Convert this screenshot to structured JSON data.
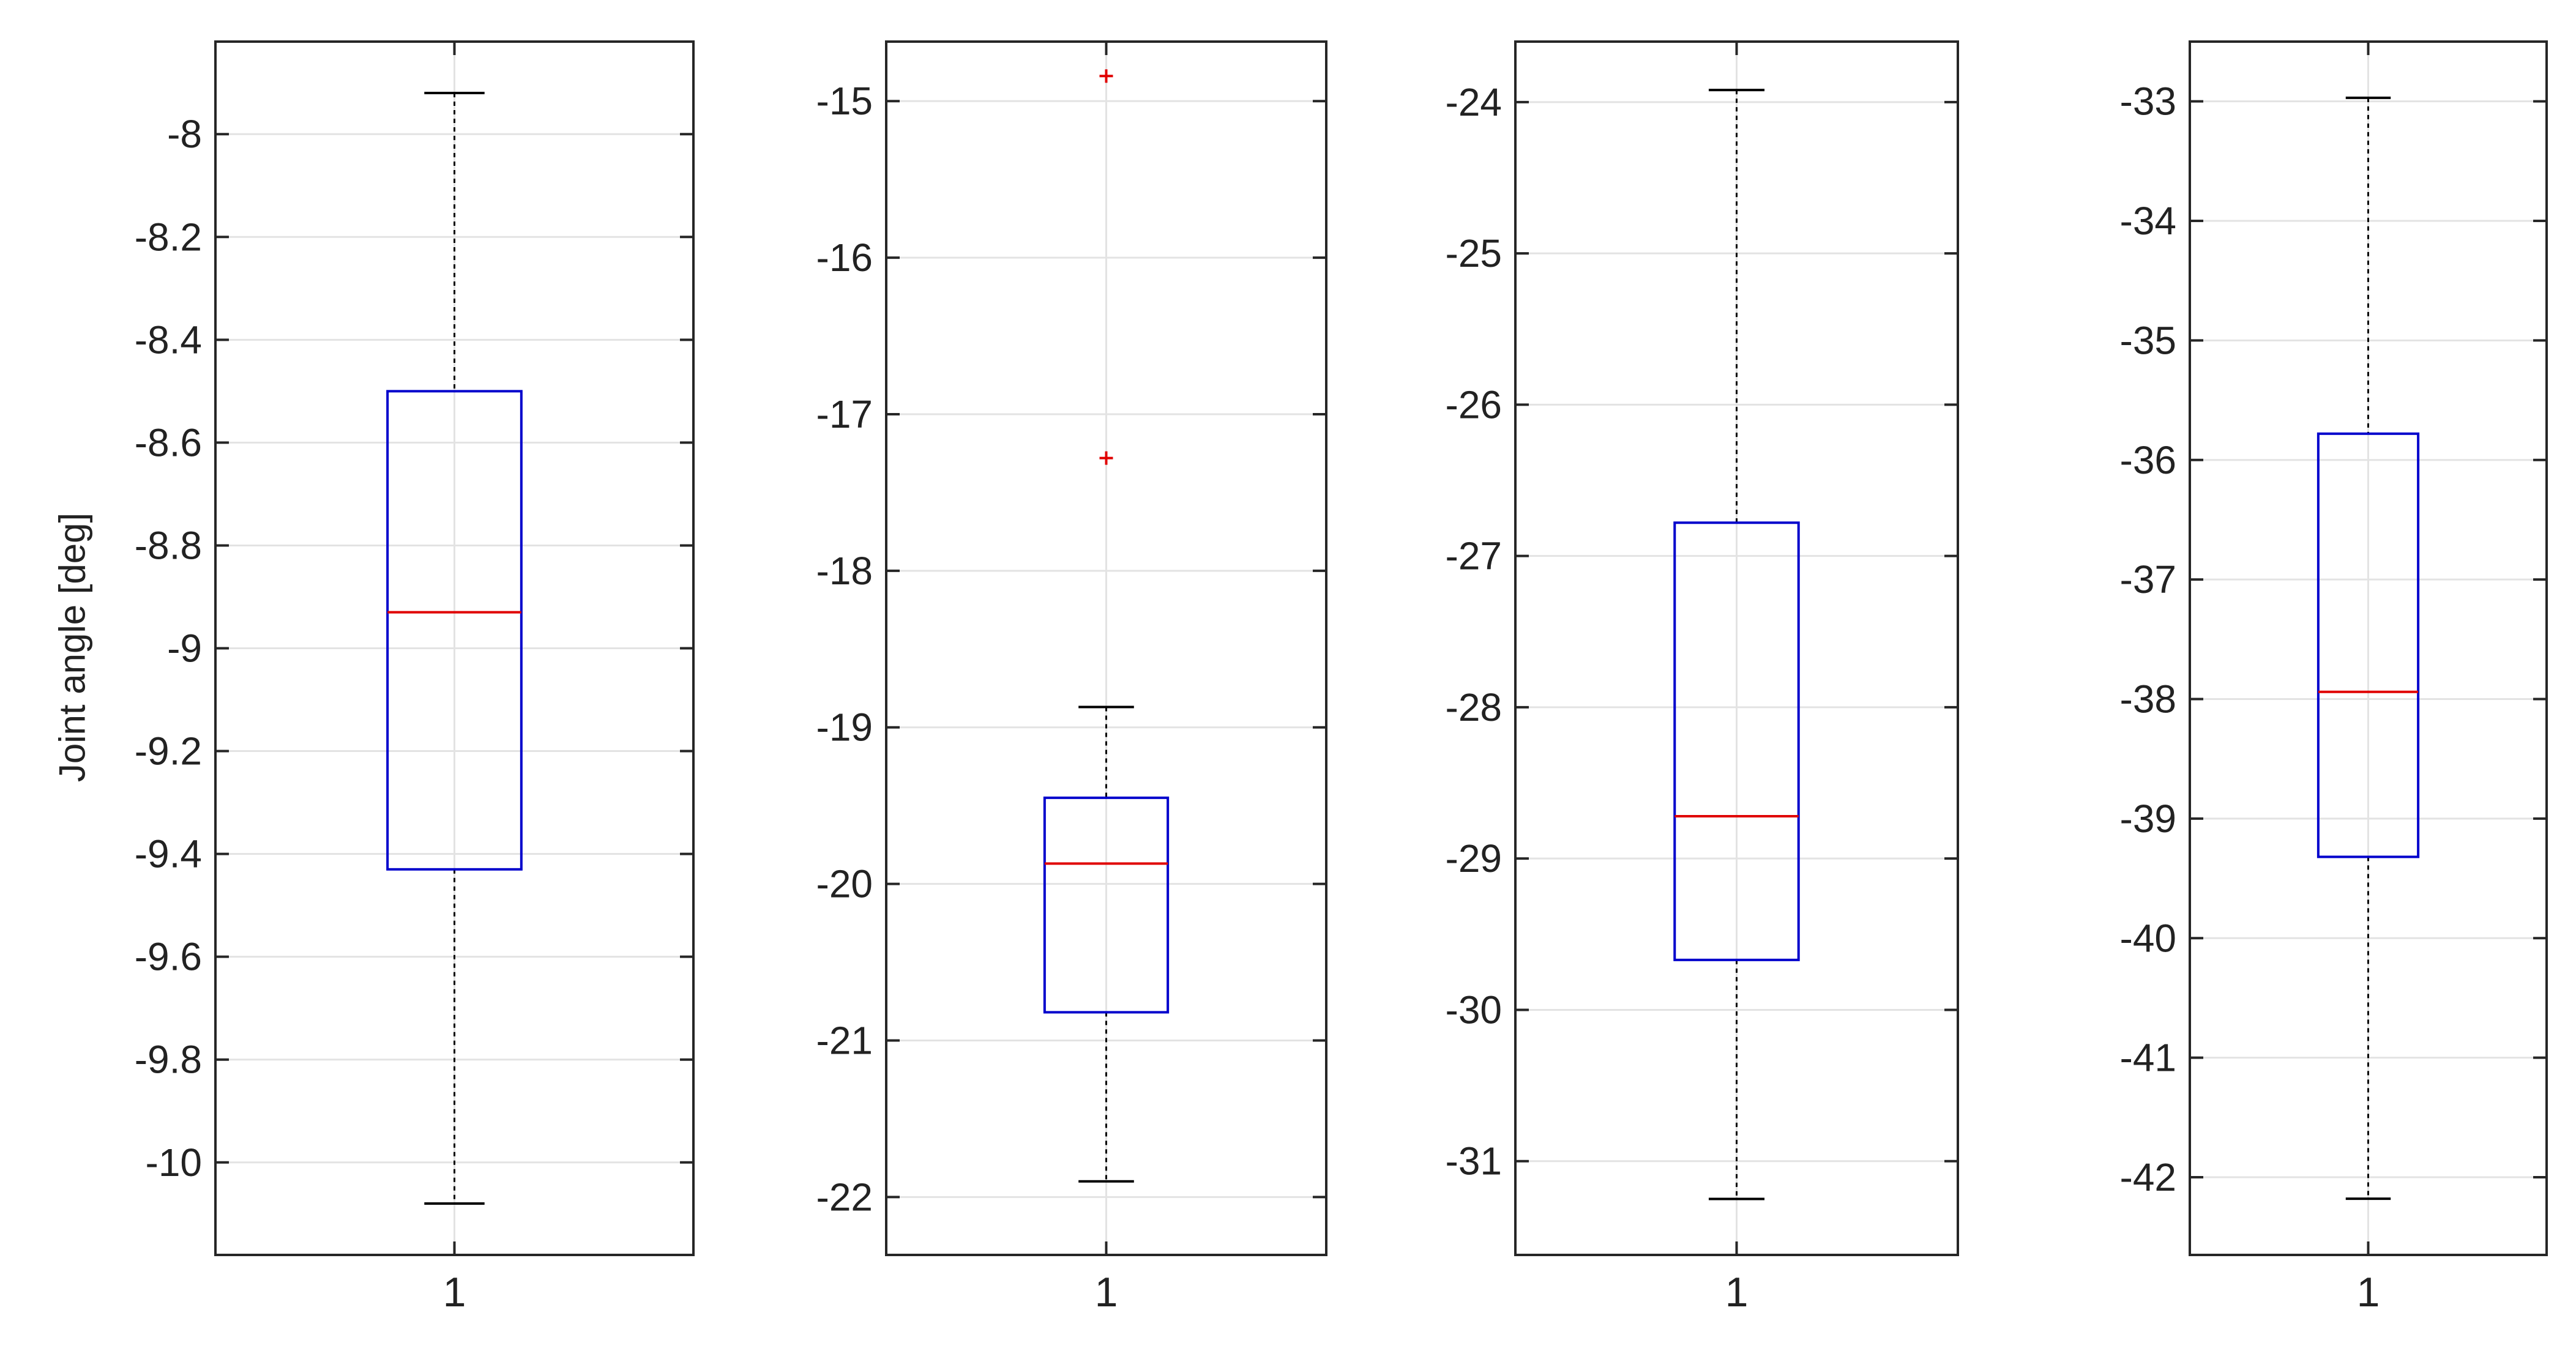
{
  "colors": {
    "axis": "#262626",
    "grid": "#e3e3e3",
    "box": "#0000cc",
    "median": "#e00000",
    "whisker": "#000000",
    "outlier": "#e00000"
  },
  "chart_data": [
    {
      "type": "box",
      "categories": [
        "1"
      ],
      "ylabel": "Joint angle [deg]",
      "ylim": [
        -10.18,
        -7.82
      ],
      "yticks": [
        -8,
        -8.2,
        -8.4,
        -8.6,
        -8.8,
        -9,
        -9.2,
        -9.4,
        -9.6,
        -9.8,
        -10
      ],
      "ytick_labels": [
        "-8",
        "-8.2",
        "-8.4",
        "-8.6",
        "-8.8",
        "-9",
        "-9.2",
        "-9.4",
        "-9.6",
        "-9.8",
        "-10"
      ],
      "grid": true,
      "box": {
        "whisker_high": -7.92,
        "q3": -8.5,
        "median": -8.93,
        "q1": -9.43,
        "whisker_low": -10.08
      },
      "outliers": []
    },
    {
      "type": "box",
      "categories": [
        "1"
      ],
      "ylabel": "",
      "ylim": [
        -22.37,
        -14.62
      ],
      "yticks": [
        -15,
        -16,
        -17,
        -18,
        -19,
        -20,
        -21,
        -22
      ],
      "ytick_labels": [
        "-15",
        "-16",
        "-17",
        "-18",
        "-19",
        "-20",
        "-21",
        "-22"
      ],
      "grid": true,
      "box": {
        "whisker_high": -18.87,
        "q3": -19.45,
        "median": -19.87,
        "q1": -20.82,
        "whisker_low": -21.9
      },
      "outliers": [
        -14.84,
        -17.28
      ]
    },
    {
      "type": "box",
      "categories": [
        "1"
      ],
      "ylabel": "",
      "ylim": [
        -31.62,
        -23.6
      ],
      "yticks": [
        -24,
        -25,
        -26,
        -27,
        -28,
        -29,
        -30,
        -31
      ],
      "ytick_labels": [
        "-24",
        "-25",
        "-26",
        "-27",
        "-28",
        "-29",
        "-30",
        "-31"
      ],
      "grid": true,
      "box": {
        "whisker_high": -23.92,
        "q3": -26.78,
        "median": -28.72,
        "q1": -29.67,
        "whisker_low": -31.25
      },
      "outliers": []
    },
    {
      "type": "box",
      "categories": [
        "1"
      ],
      "ylabel": "",
      "ylim": [
        -42.65,
        -32.5
      ],
      "yticks": [
        -33,
        -34,
        -35,
        -36,
        -37,
        -38,
        -39,
        -40,
        -41,
        -42
      ],
      "ytick_labels": [
        "-33",
        "-34",
        "-35",
        "-36",
        "-37",
        "-38",
        "-39",
        "-40",
        "-41",
        "-42"
      ],
      "grid": true,
      "box": {
        "whisker_high": -32.97,
        "q3": -35.78,
        "median": -37.94,
        "q1": -39.32,
        "whisker_low": -42.18
      },
      "outliers": []
    }
  ]
}
